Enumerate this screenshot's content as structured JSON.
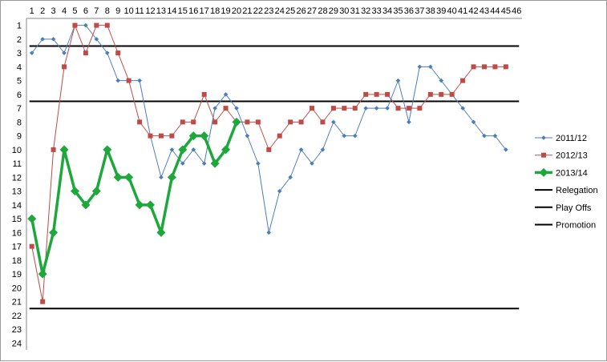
{
  "chart_data": {
    "type": "line",
    "title": "",
    "xlabel": "",
    "ylabel": "",
    "x": [
      1,
      2,
      3,
      4,
      5,
      6,
      7,
      8,
      9,
      10,
      11,
      12,
      13,
      14,
      15,
      16,
      17,
      18,
      19,
      20,
      21,
      22,
      23,
      24,
      25,
      26,
      27,
      28,
      29,
      30,
      31,
      32,
      33,
      34,
      35,
      36,
      37,
      38,
      39,
      40,
      41,
      42,
      43,
      44,
      45,
      46
    ],
    "x_tick_labels": [
      "1",
      "2",
      "3",
      "4",
      "5",
      "6",
      "7",
      "8",
      "9",
      "10",
      "11",
      "12",
      "13",
      "14",
      "15",
      "16",
      "17",
      "18",
      "19",
      "20",
      "21",
      "22",
      "23",
      "24",
      "25",
      "26",
      "27",
      "28",
      "29",
      "30",
      "31",
      "32",
      "33",
      "34",
      "35",
      "36",
      "37",
      "38",
      "39",
      "40",
      "41",
      "42",
      "43",
      "44",
      "45",
      "46"
    ],
    "y_tick_labels": [
      "1",
      "2",
      "3",
      "4",
      "5",
      "6",
      "7",
      "8",
      "9",
      "10",
      "11",
      "12",
      "13",
      "14",
      "15",
      "16",
      "17",
      "18",
      "19",
      "20",
      "21",
      "22",
      "23",
      "24"
    ],
    "ylim": [
      1,
      24
    ],
    "y_inverted": true,
    "x_axis_position": "top",
    "grid": false,
    "legend_position": "right",
    "series": [
      {
        "name": "2011/12",
        "color": "#4a7ebb",
        "marker": "diamond-small",
        "line_width": "thin",
        "values": [
          3,
          2,
          2,
          3,
          1,
          1,
          2,
          3,
          5,
          5,
          5,
          9,
          12,
          10,
          11,
          10,
          11,
          7,
          6,
          7,
          9,
          11,
          16,
          13,
          12,
          10,
          11,
          10,
          8,
          9,
          9,
          7,
          7,
          7,
          5,
          8,
          4,
          4,
          5,
          6,
          7,
          8,
          9,
          9,
          10,
          null
        ]
      },
      {
        "name": "2012/13",
        "color": "#be4b48",
        "marker": "square-small",
        "line_width": "thin",
        "values": [
          17,
          21,
          10,
          4,
          1,
          3,
          1,
          1,
          3,
          5,
          8,
          9,
          9,
          9,
          8,
          8,
          6,
          8,
          7,
          8,
          8,
          8,
          10,
          9,
          8,
          8,
          7,
          8,
          7,
          7,
          7,
          6,
          6,
          6,
          7,
          7,
          7,
          6,
          6,
          6,
          5,
          4,
          4,
          4,
          4,
          null
        ]
      },
      {
        "name": "2013/14",
        "color": "#1ea83c",
        "marker": "diamond-large",
        "line_width": "thick",
        "values": [
          15,
          19,
          16,
          10,
          13,
          14,
          13,
          10,
          12,
          12,
          14,
          14,
          16,
          12,
          10,
          9,
          9,
          11,
          10,
          8,
          null,
          null,
          null,
          null,
          null,
          null,
          null,
          null,
          null,
          null,
          null,
          null,
          null,
          null,
          null,
          null,
          null,
          null,
          null,
          null,
          null,
          null,
          null,
          null,
          null,
          null
        ]
      }
    ],
    "reference_lines": [
      {
        "name": "Relegation",
        "y": 21.5,
        "color": "#000000"
      },
      {
        "name": "Play Offs",
        "y": 6.5,
        "color": "#000000"
      },
      {
        "name": "Promotion",
        "y": 2.5,
        "color": "#000000"
      }
    ]
  }
}
